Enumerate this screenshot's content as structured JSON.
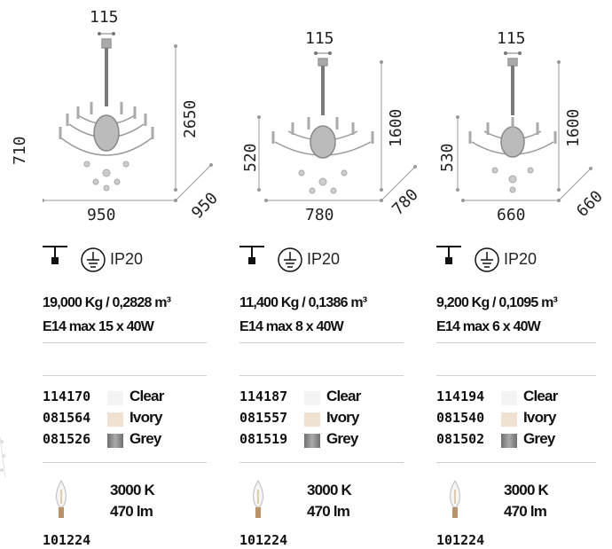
{
  "products": [
    {
      "dims": {
        "top": "115",
        "height_total": "2650",
        "height_body": "710",
        "width": "950",
        "depth": "950"
      },
      "ip": "IP20",
      "weight_volume": "19,000 Kg / 0,2828 m³",
      "lamp": "E14 max 15 x 40W",
      "variants": [
        {
          "code": "114170",
          "finish": "Clear",
          "color": "#f4f4f4"
        },
        {
          "code": "081564",
          "finish": "Ivory",
          "color": "#efe2d2"
        },
        {
          "code": "081526",
          "finish": "Grey",
          "color": "#8a8a8a"
        }
      ],
      "bulb": {
        "temp": "3000 K",
        "lumen": "470 lm",
        "code": "101224"
      }
    },
    {
      "dims": {
        "top": "115",
        "height_total": "1600",
        "height_body": "520",
        "width": "780",
        "depth": "780"
      },
      "ip": "IP20",
      "weight_volume": "11,400 Kg / 0,1386 m³",
      "lamp": "E14 max 8 x 40W",
      "variants": [
        {
          "code": "114187",
          "finish": "Clear",
          "color": "#f4f4f4"
        },
        {
          "code": "081557",
          "finish": "Ivory",
          "color": "#efe2d2"
        },
        {
          "code": "081519",
          "finish": "Grey",
          "color": "#8a8a8a"
        }
      ],
      "bulb": {
        "temp": "3000 K",
        "lumen": "470 lm",
        "code": "101224"
      }
    },
    {
      "dims": {
        "top": "115",
        "height_total": "1600",
        "height_body": "530",
        "width": "660",
        "depth": "660"
      },
      "ip": "IP20",
      "weight_volume": "9,200 Kg / 0,1095 m³",
      "lamp": "E14 max 6 x 40W",
      "variants": [
        {
          "code": "114194",
          "finish": "Clear",
          "color": "#f4f4f4"
        },
        {
          "code": "081540",
          "finish": "Ivory",
          "color": "#efe2d2"
        },
        {
          "code": "081502",
          "finish": "Grey",
          "color": "#8a8a8a"
        }
      ],
      "bulb": {
        "temp": "3000 K",
        "lumen": "470 lm",
        "code": "101224"
      }
    }
  ]
}
